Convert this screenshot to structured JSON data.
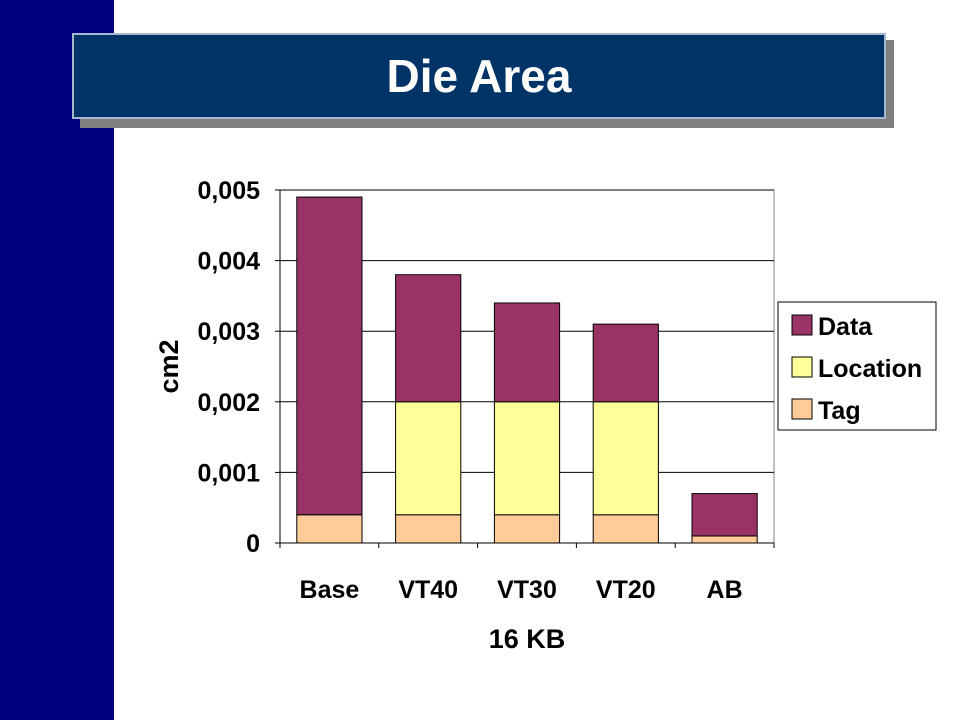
{
  "slide": {
    "title": "Die Area",
    "left_bar_color": "#000080",
    "title_bg_color": "#003366"
  },
  "chart_data": {
    "type": "bar",
    "stacked": true,
    "categories": [
      "Base",
      "VT40",
      "VT30",
      "VT20",
      "AB"
    ],
    "series": [
      {
        "name": "Tag",
        "color": "#FFCC99",
        "values": [
          0.0004,
          0.0004,
          0.0004,
          0.0004,
          0.0001
        ]
      },
      {
        "name": "Location",
        "color": "#FFFF99",
        "values": [
          0,
          0.0016,
          0.0016,
          0.0016,
          0
        ]
      },
      {
        "name": "Data",
        "color": "#993366",
        "values": [
          0.0045,
          0.0018,
          0.0014,
          0.0011,
          0.0006
        ]
      }
    ],
    "legend_order": [
      "Data",
      "Location",
      "Tag"
    ],
    "xlabel": "16 KB",
    "ylabel": "cm2",
    "ylim": [
      0,
      0.005
    ],
    "yticks": [
      0,
      0.001,
      0.002,
      0.003,
      0.004,
      0.005
    ],
    "ytick_labels": [
      "0",
      "0,001",
      "0,002",
      "0,003",
      "0,004",
      "0,005"
    ],
    "grid": true,
    "legend_position": "right"
  }
}
